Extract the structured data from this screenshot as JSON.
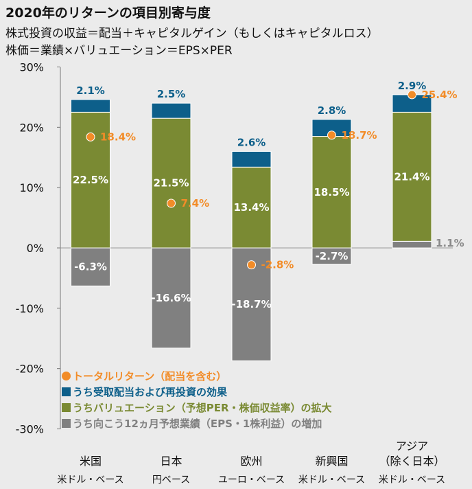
{
  "header": {
    "title": "2020年のリターンの項目別寄与度",
    "subtitle1": "株式投資の収益＝配当＋キャピタルゲイン（もしくはキャピタルロス）",
    "subtitle2": "株価＝業績×バリュエーション＝EPS×PER"
  },
  "colors": {
    "dividend": "#0d5f8a",
    "valuation": "#7a8a33",
    "eps": "#808080",
    "total": "#f28c28"
  },
  "chart_data": {
    "type": "bar",
    "stacked": true,
    "title": "2020年のリターンの項目別寄与度",
    "ylim": [
      -30,
      30
    ],
    "yticks": [
      30,
      20,
      10,
      0,
      -10,
      -20,
      -30
    ],
    "ytick_labels": [
      "30%",
      "20%",
      "10%",
      "0%",
      "-10%",
      "-20%",
      "-30%"
    ],
    "categories": [
      "米国",
      "日本",
      "欧州",
      "新興国",
      "アジア（除く日本）"
    ],
    "category_lines": [
      [
        "米国"
      ],
      [
        "日本"
      ],
      [
        "欧州"
      ],
      [
        "新興国"
      ],
      [
        "アジア",
        "（除く日本）"
      ]
    ],
    "currency_base": [
      "米ドル・ベース",
      "円ベース",
      "ユーロ・ベース",
      "米ドル・ベース",
      "米ドル・ベース"
    ],
    "series": [
      {
        "name": "うち向こう12ヵ月予想業績（EPS・1株利益）の増加",
        "key": "eps",
        "values": [
          -6.3,
          -16.6,
          -18.7,
          -2.7,
          1.1
        ]
      },
      {
        "name": "うちバリュエーション（予想PER・株価収益率）の拡大",
        "key": "valuation",
        "values": [
          22.5,
          21.5,
          13.4,
          18.5,
          21.4
        ]
      },
      {
        "name": "うち受取配当および再投資の効果",
        "key": "dividend",
        "values": [
          2.1,
          2.5,
          2.6,
          2.8,
          2.9
        ]
      },
      {
        "name": "トータルリターン（配当を含む）",
        "key": "total",
        "type": "point",
        "values": [
          18.4,
          7.4,
          -2.8,
          18.7,
          25.4
        ]
      }
    ],
    "legend_position": "bottom-left"
  }
}
